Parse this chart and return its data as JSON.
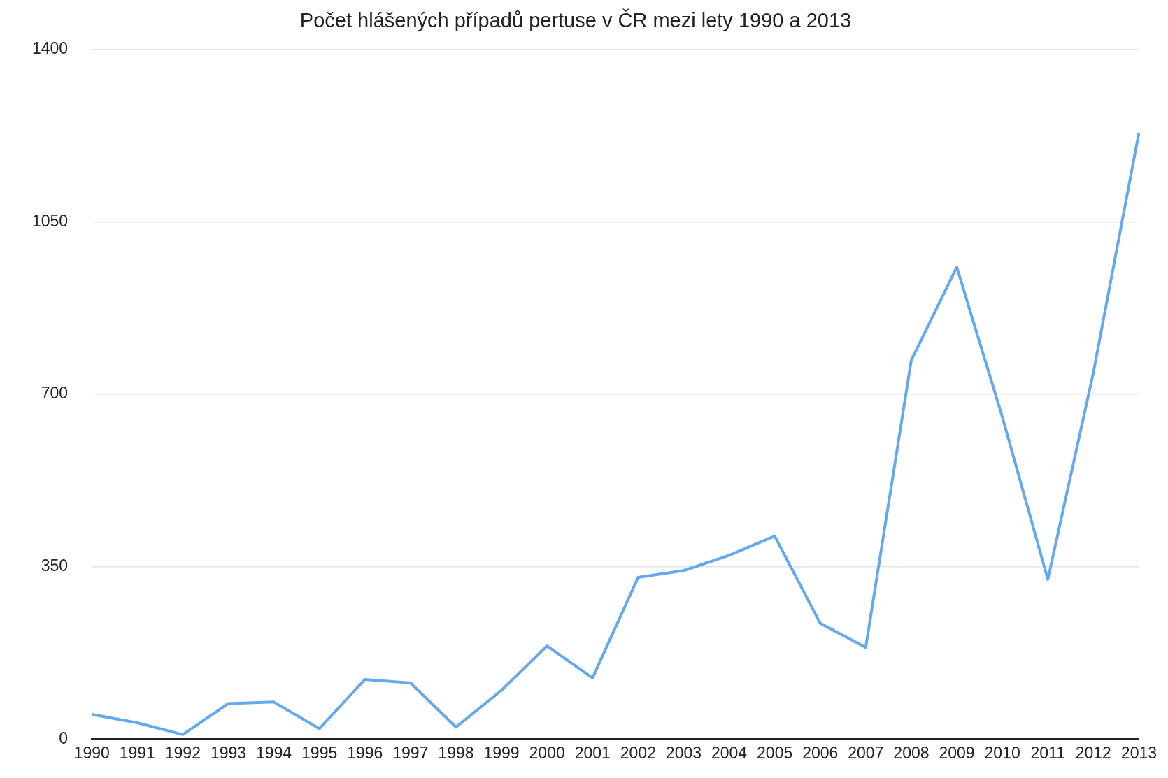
{
  "chart_data": {
    "type": "line",
    "title": "Počet hlášených případů pertuse v ČR mezi lety 1990 a 2013",
    "categories": [
      "1990",
      "1991",
      "1992",
      "1993",
      "1994",
      "1995",
      "1996",
      "1997",
      "1998",
      "1999",
      "2000",
      "2001",
      "2002",
      "2003",
      "2004",
      "2005",
      "2006",
      "2007",
      "2008",
      "2009",
      "2010",
      "2011",
      "2012",
      "2013"
    ],
    "series": [
      {
        "color": "#64a8f0",
        "values": [
          50,
          33,
          9,
          72,
          75,
          21,
          121,
          114,
          24,
          99,
          189,
          124,
          328,
          342,
          373,
          412,
          235,
          186,
          769,
          958,
          654,
          324,
          744,
          1231
        ]
      }
    ],
    "ylim": [
      0,
      1400
    ],
    "yticks": [
      0,
      350,
      700,
      1050,
      1400
    ],
    "grid": "y",
    "legend": false,
    "marker": "none",
    "line_style": "solid"
  }
}
